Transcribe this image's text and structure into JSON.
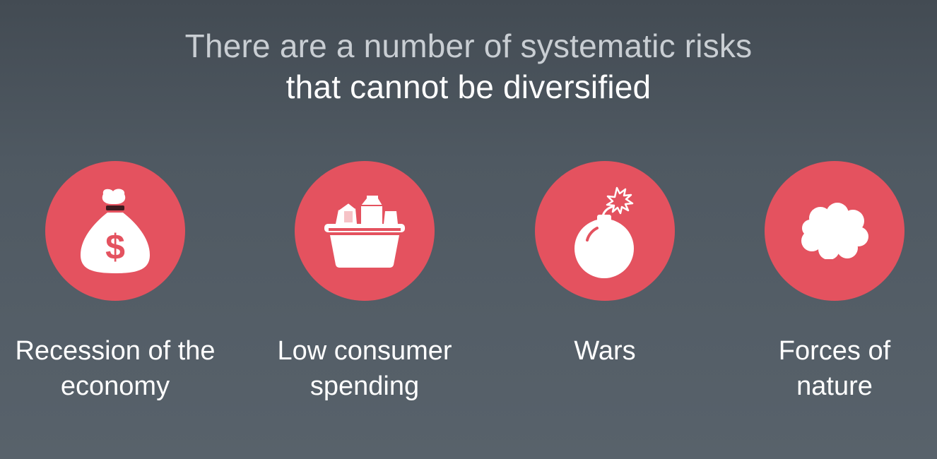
{
  "slide": {
    "title_line_1": "There are a number of systematic risks",
    "title_line_2": "that cannot be diversified"
  },
  "items": [
    {
      "label": "Recession of the\neconomy",
      "icon": "money-bag-icon"
    },
    {
      "label": "Low consumer\nspending",
      "icon": "grocery-basket-icon"
    },
    {
      "label": "Wars",
      "icon": "bomb-icon"
    },
    {
      "label": "Forces of\nnature",
      "icon": "cloud-icon"
    }
  ],
  "colors": {
    "background_top": "#434b53",
    "background_bottom": "#58626b",
    "circle": "#e4525f",
    "text": "#ffffff",
    "title_muted": "#c9ced3"
  }
}
